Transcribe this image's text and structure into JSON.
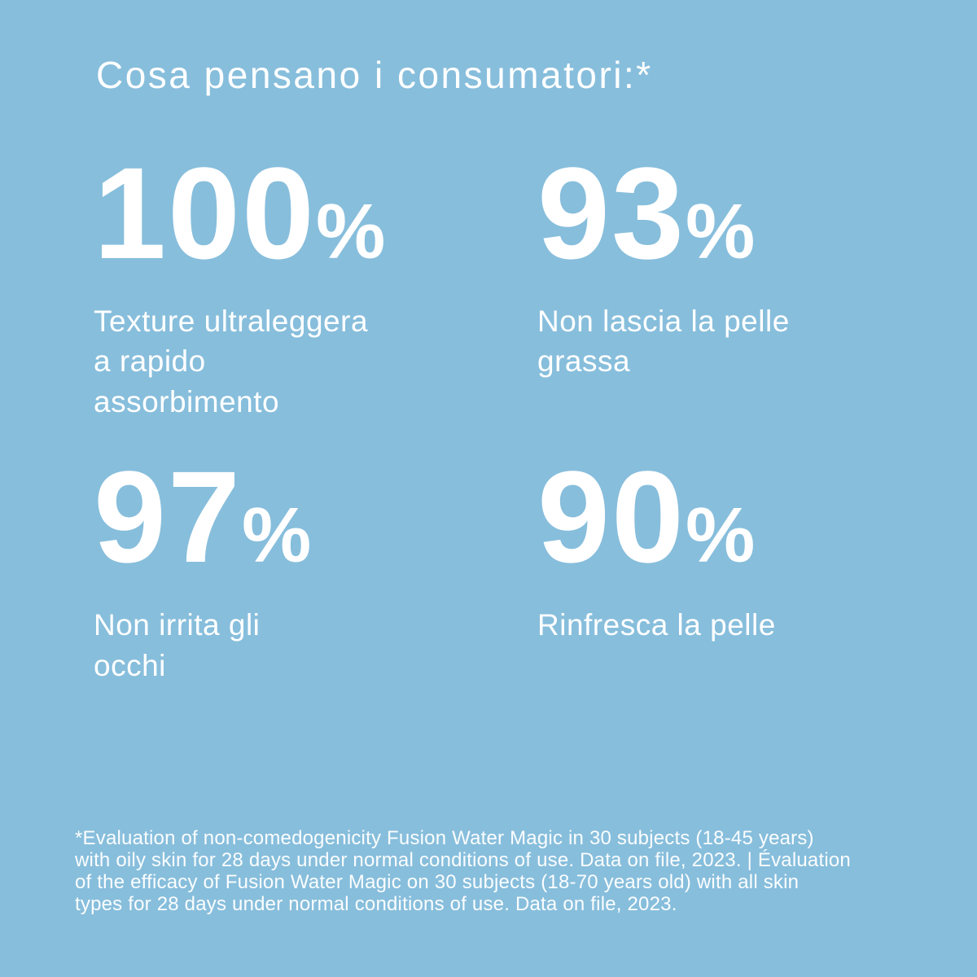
{
  "colors": {
    "background": "#87BEDC",
    "text": "#FFFFFF"
  },
  "title": "Cosa pensano i consumatori:*",
  "stats": [
    {
      "value": "100",
      "unit": "%",
      "label": "Texture ultraleggera\na rapido\nassorbimento"
    },
    {
      "value": "93",
      "unit": "%",
      "label": "Non lascia la pelle\ngrassa"
    },
    {
      "value": "97",
      "unit": "%",
      "label": "Non irrita gli\nocchi"
    },
    {
      "value": "90",
      "unit": "%",
      "label": "Rinfresca la pelle"
    }
  ],
  "footnote": "*Evaluation of non-comedogenicity Fusion Water Magic in 30 subjects (18-45 years)\nwith oily skin for 28 days under normal conditions of use. Data on file, 2023. | Évaluation\nof the efficacy of Fusion Water Magic on 30 subjects (18-70 years old) with all skin\ntypes for 28 days under normal conditions of use. Data on file, 2023.",
  "chart_data": {
    "type": "table",
    "title": "Cosa pensano i consumatori:*",
    "categories": [
      "Texture ultraleggera a rapido assorbimento",
      "Non lascia la pelle grassa",
      "Non irrita gli occhi",
      "Rinfresca la pelle"
    ],
    "values": [
      100,
      93,
      97,
      90
    ],
    "unit": "%",
    "layout": "2x2 stat grid, title top-left, footnote bottom",
    "footnote": "*Evaluation of non-comedogenicity Fusion Water Magic in 30 subjects (18-45 years) with oily skin for 28 days under normal conditions of use. Data on file, 2023. | Évaluation of the efficacy of Fusion Water Magic on 30 subjects (18-70 years old) with all skin types for 28 days under normal conditions of use. Data on file, 2023."
  }
}
